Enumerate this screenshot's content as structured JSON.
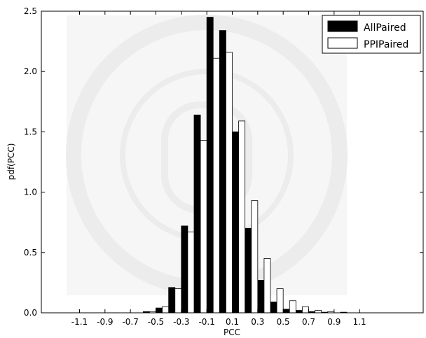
{
  "chart_data": {
    "type": "bar",
    "xlabel": "PCC",
    "ylabel": "pdf(PCC)",
    "xlim": [
      -1.4,
      1.6
    ],
    "ylim": [
      0,
      2.5
    ],
    "bin_width": 0.1,
    "x_ticks": [
      {
        "value": -1.1,
        "label": "-1.1"
      },
      {
        "value": -0.9,
        "label": "-0.9"
      },
      {
        "value": -0.7,
        "label": "-0.7"
      },
      {
        "value": -0.5,
        "label": "-0.5"
      },
      {
        "value": -0.3,
        "label": "-0.3"
      },
      {
        "value": -0.1,
        "label": "-0.1"
      },
      {
        "value": 0.1,
        "label": "0.1"
      },
      {
        "value": 0.3,
        "label": "0.3"
      },
      {
        "value": 0.5,
        "label": "0.5"
      },
      {
        "value": 0.7,
        "label": "0.7"
      },
      {
        "value": 0.9,
        "label": "0.9"
      },
      {
        "value": 1.1,
        "label": "1.1"
      }
    ],
    "y_ticks": [
      {
        "value": 0.0,
        "label": "0.0"
      },
      {
        "value": 0.5,
        "label": "0.5"
      },
      {
        "value": 1.0,
        "label": "1.0"
      },
      {
        "value": 1.5,
        "label": "1.5"
      },
      {
        "value": 2.0,
        "label": "2.0"
      },
      {
        "value": 2.5,
        "label": "2.5"
      }
    ],
    "bin_starts": [
      -0.6,
      -0.5,
      -0.4,
      -0.3,
      -0.2,
      -0.1,
      0.0,
      0.1,
      0.2,
      0.3,
      0.4,
      0.5,
      0.6,
      0.7,
      0.8,
      0.9
    ],
    "series": [
      {
        "name": "AllPaired",
        "color": "#000000",
        "values": [
          0.01,
          0.04,
          0.21,
          0.72,
          1.64,
          2.45,
          2.34,
          1.5,
          0.7,
          0.27,
          0.09,
          0.03,
          0.02,
          0.01,
          0.005,
          0.0
        ]
      },
      {
        "name": "PPIPaired",
        "color": "#ffffff",
        "values": [
          0.01,
          0.05,
          0.2,
          0.67,
          1.43,
          2.11,
          2.16,
          1.59,
          0.93,
          0.45,
          0.2,
          0.1,
          0.05,
          0.02,
          0.01,
          0.005
        ]
      }
    ],
    "legend_position": "top-right",
    "grid": false
  }
}
